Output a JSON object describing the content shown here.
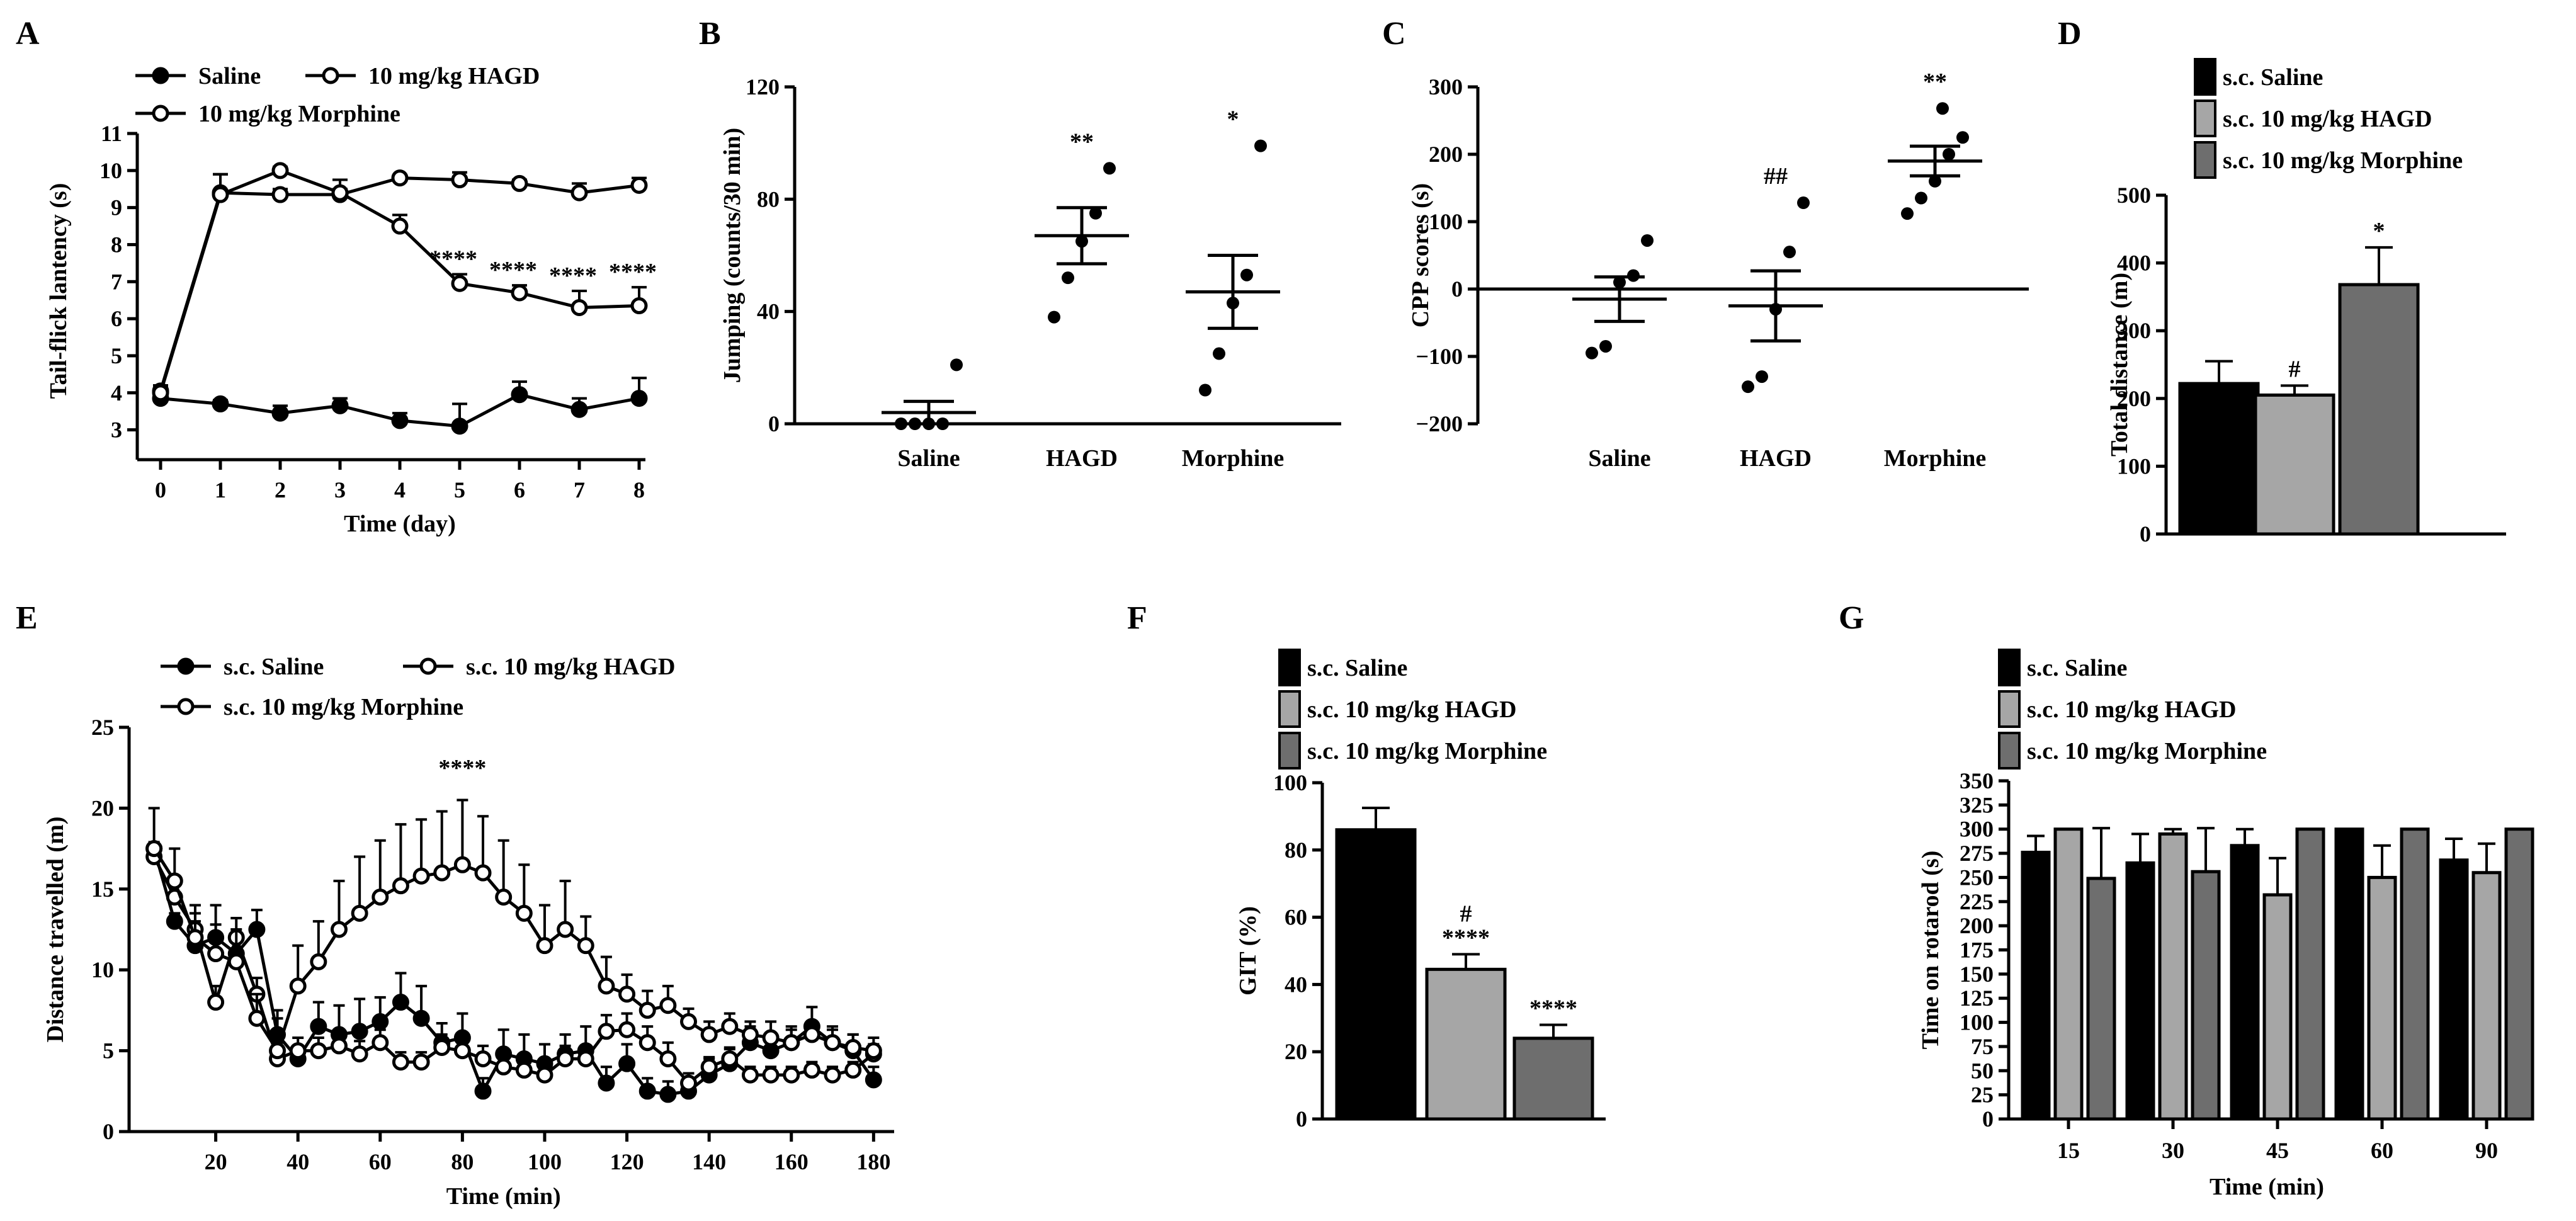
{
  "colors": {
    "saline": "#000000",
    "hagd": "#a6a6a6",
    "morphine": "#6e6e6e",
    "white": "#ffffff"
  },
  "chart_data": [
    {
      "panel": "A",
      "type": "line",
      "xlabel": "Time (day)",
      "ylabel": "Tail-flick lantency (s)",
      "x": [
        0,
        1,
        2,
        3,
        4,
        5,
        6,
        7,
        8
      ],
      "xticks": [
        "0",
        "1",
        "2",
        "3",
        "4",
        "5",
        "6",
        "7",
        "8"
      ],
      "ylim": [
        2.5,
        11
      ],
      "yticks": [
        3,
        4,
        5,
        6,
        7,
        8,
        9,
        10,
        11
      ],
      "legend": [
        "Saline",
        "10 mg/kg HAGD",
        "10 mg/kg Morphine"
      ],
      "series": [
        {
          "name": "Saline",
          "marker": "filled",
          "values": [
            3.85,
            3.7,
            3.45,
            3.65,
            3.25,
            3.1,
            3.95,
            3.55,
            3.85
          ],
          "errors": [
            0.1,
            0.1,
            0.2,
            0.2,
            0.2,
            0.6,
            0.35,
            0.3,
            0.55
          ]
        },
        {
          "name": "10 mg/kg HAGD",
          "marker": "open",
          "values": [
            4.05,
            9.4,
            9.35,
            9.35,
            9.8,
            9.75,
            9.65,
            9.4,
            9.6
          ],
          "errors": [
            0.15,
            0.5,
            0.15,
            0.4,
            0.05,
            0.2,
            0.1,
            0.25,
            0.2
          ]
        },
        {
          "name": "10 mg/kg Morphine",
          "marker": "open",
          "values": [
            4.0,
            9.35,
            10.0,
            9.4,
            8.5,
            6.95,
            6.7,
            6.3,
            6.35
          ],
          "errors": [
            0.1,
            0.55,
            0.1,
            0.1,
            0.3,
            0.25,
            0.2,
            0.45,
            0.5
          ]
        }
      ],
      "annotations": [
        {
          "x": 5,
          "text": "****"
        },
        {
          "x": 6,
          "text": "****"
        },
        {
          "x": 7,
          "text": "****"
        },
        {
          "x": 8,
          "text": "****"
        }
      ]
    },
    {
      "panel": "B",
      "type": "scatter",
      "ylabel": "Jumping (counts/30 min)",
      "ylim": [
        0,
        120
      ],
      "yticks": [
        0,
        40,
        80,
        120
      ],
      "categories": [
        "Saline",
        "HAGD",
        "Morphine"
      ],
      "points": [
        [
          0,
          0,
          0,
          0,
          21
        ],
        [
          38,
          52,
          65,
          75,
          91
        ],
        [
          12,
          25,
          43,
          53,
          99
        ]
      ],
      "means": [
        4,
        67,
        47
      ],
      "sem": [
        4,
        10,
        13
      ],
      "annotations": [
        "",
        "**",
        "*"
      ]
    },
    {
      "panel": "C",
      "type": "scatter",
      "ylabel": "CPP scores (s)",
      "ylim": [
        -200,
        300
      ],
      "yticks": [
        -200,
        -100,
        0,
        100,
        200,
        300
      ],
      "categories": [
        "Saline",
        "HAGD",
        "Morphine"
      ],
      "points": [
        [
          -95,
          -85,
          10,
          20,
          72
        ],
        [
          -145,
          -130,
          -30,
          55,
          128
        ],
        [
          112,
          135,
          160,
          200,
          225,
          268
        ]
      ],
      "means": [
        -15,
        -25,
        190
      ],
      "sem": [
        33,
        52,
        22
      ],
      "annotations": [
        "",
        "##",
        "**"
      ]
    },
    {
      "panel": "D",
      "type": "bar",
      "ylabel": "Total distance (m)",
      "ylim": [
        0,
        500
      ],
      "yticks": [
        0,
        100,
        200,
        300,
        400,
        500
      ],
      "series": [
        {
          "name": "s.c. Saline",
          "value": 222,
          "error": 33
        },
        {
          "name": "s.c. 10 mg/kg HAGD",
          "value": 205,
          "error": 14
        },
        {
          "name": "s.c. 10 mg/kg Morphine",
          "value": 368,
          "error": 55
        }
      ],
      "annotations": [
        "",
        "#",
        "*"
      ]
    },
    {
      "panel": "E",
      "type": "line",
      "xlabel": "Time (min)",
      "ylabel": "Distance travelled (m)",
      "xlim": [
        0,
        185
      ],
      "xticks": [
        20,
        40,
        60,
        80,
        100,
        120,
        140,
        160,
        180
      ],
      "ylim": [
        0,
        25
      ],
      "yticks": [
        0,
        5,
        10,
        15,
        20,
        25
      ],
      "x": [
        5,
        10,
        15,
        20,
        25,
        30,
        35,
        40,
        45,
        50,
        55,
        60,
        65,
        70,
        75,
        80,
        85,
        90,
        95,
        100,
        105,
        110,
        115,
        120,
        125,
        130,
        135,
        140,
        145,
        150,
        155,
        160,
        165,
        170,
        175,
        180
      ],
      "legend": [
        "s.c. Saline",
        "s.c. 10 mg/kg HAGD",
        "s.c. 10 mg/kg Morphine"
      ],
      "series": [
        {
          "name": "s.c. Saline",
          "marker": "filled",
          "values": [
            17.5,
            13,
            11.5,
            12,
            11,
            12.5,
            6,
            4.5,
            6.5,
            6,
            6.2,
            6.8,
            8,
            7,
            5.5,
            5.8,
            2.5,
            4.8,
            4.5,
            4.2,
            4.8,
            5,
            3,
            4.2,
            2.5,
            2.3,
            2.5,
            3.5,
            4.2,
            5.5,
            5,
            5.5,
            6.5,
            5.5,
            5,
            3.2
          ],
          "errors": [
            0.4,
            0.5,
            1.5,
            2,
            1,
            1.2,
            1.5,
            0.8,
            1.5,
            1.8,
            2,
            1.5,
            1.8,
            2,
            1.2,
            1.5,
            0.8,
            1.5,
            1.5,
            1.2,
            1.2,
            1.5,
            1,
            1.2,
            0.8,
            0.8,
            0.8,
            1,
            1,
            1,
            1,
            1,
            1.2,
            1,
            1,
            0.8
          ]
        },
        {
          "name": "s.c. 10 mg/kg HAGD",
          "marker": "open",
          "values": [
            17,
            14.5,
            12.5,
            8,
            12,
            8.5,
            4.5,
            5,
            5,
            5.3,
            4.8,
            5.5,
            4.3,
            4.3,
            5.2,
            5,
            4.5,
            4,
            3.8,
            3.5,
            4.5,
            4.5,
            6.2,
            6.3,
            5.5,
            4.5,
            3,
            4,
            4.5,
            3.5,
            3.5,
            3.5,
            3.8,
            3.5,
            3.8,
            4.8
          ],
          "errors": [
            0.5,
            0.8,
            1,
            1,
            1.2,
            1,
            1,
            0.8,
            0.8,
            0.8,
            0.8,
            0.8,
            0.6,
            0.6,
            0.8,
            0.8,
            0.8,
            0.8,
            0.6,
            0.6,
            0.8,
            0.8,
            1,
            1,
            1,
            1,
            0.6,
            0.6,
            0.6,
            0.5,
            0.5,
            0.5,
            0.5,
            0.5,
            0.5,
            0.6
          ]
        },
        {
          "name": "s.c. 10 mg/kg Morphine",
          "marker": "open",
          "values": [
            17.5,
            15.5,
            12,
            11,
            10.5,
            7,
            5,
            9,
            10.5,
            12.5,
            13.5,
            14.5,
            15.2,
            15.8,
            16,
            16.5,
            16,
            14.5,
            13.5,
            11.5,
            12.5,
            11.5,
            9,
            8.5,
            7.5,
            7.8,
            6.8,
            6,
            6.5,
            6,
            5.8,
            5.5,
            6,
            5.5,
            5.2,
            5
          ],
          "errors": [
            2.5,
            2,
            2,
            1.8,
            2,
            1.5,
            2,
            2.5,
            2.5,
            3,
            3.5,
            3.5,
            3.8,
            3.5,
            3.8,
            4,
            3.5,
            3.5,
            3,
            2.5,
            3,
            1.8,
            1.8,
            1.2,
            1.2,
            1.2,
            0.8,
            0.8,
            0.8,
            0.8,
            1,
            0.8,
            0.8,
            0.8,
            0.8,
            0.8
          ]
        }
      ],
      "annotations": [
        {
          "x": 80,
          "text": "****"
        }
      ]
    },
    {
      "panel": "F",
      "type": "bar",
      "ylabel": "GIT (%)",
      "ylim": [
        0,
        100
      ],
      "yticks": [
        0,
        20,
        40,
        60,
        80,
        100
      ],
      "series": [
        {
          "name": "s.c. Saline",
          "value": 86,
          "error": 6.5
        },
        {
          "name": "s.c. 10 mg/kg HAGD",
          "value": 44.5,
          "error": 4.5
        },
        {
          "name": "s.c. 10 mg/kg Morphine",
          "value": 24,
          "error": 4
        }
      ],
      "annotations": [
        "",
        "#\n****",
        "****"
      ]
    },
    {
      "panel": "G",
      "type": "bar",
      "xlabel": "Time (min)",
      "ylabel": "Time on rotarod (s)",
      "ylim": [
        0,
        350
      ],
      "yticks": [
        0,
        25,
        50,
        75,
        100,
        125,
        150,
        175,
        200,
        225,
        250,
        275,
        300,
        325,
        350
      ],
      "categories": [
        "15",
        "30",
        "45",
        "60",
        "90"
      ],
      "series": [
        {
          "name": "s.c. Saline",
          "values": [
            276,
            265,
            283,
            300,
            268
          ],
          "errors": [
            17,
            30,
            17,
            0,
            22
          ]
        },
        {
          "name": "s.c. 10 mg/kg HAGD",
          "values": [
            300,
            295,
            232,
            250,
            255
          ],
          "errors": [
            0,
            5,
            38,
            33,
            30
          ]
        },
        {
          "name": "s.c. 10 mg/kg Morphine",
          "values": [
            249,
            256,
            300,
            300,
            300
          ],
          "errors": [
            52,
            45,
            0,
            0,
            0
          ]
        }
      ]
    }
  ]
}
